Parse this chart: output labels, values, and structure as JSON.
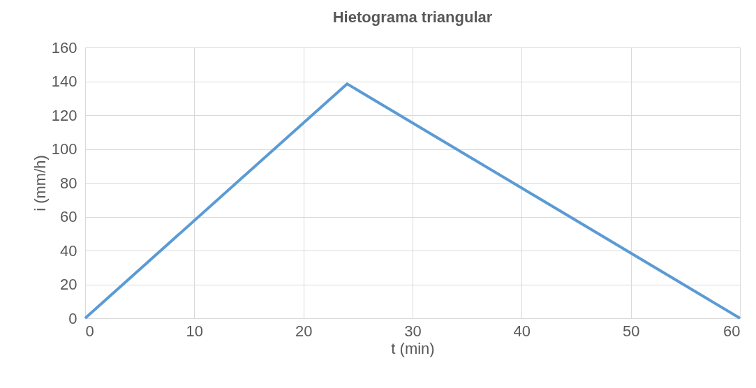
{
  "chart_data": {
    "type": "line",
    "title": "Hietograma triangular",
    "xlabel": "t (min)",
    "ylabel": "i (mm/h)",
    "x": [
      0,
      24,
      60
    ],
    "series": [
      {
        "color": "#5b9bd5",
        "values": [
          0,
          138.5,
          0
        ]
      }
    ],
    "xlim": [
      0,
      60
    ],
    "xticks": [
      0,
      10,
      20,
      30,
      40,
      50,
      60
    ],
    "ylim": [
      0,
      160
    ],
    "yticks": [
      0,
      20,
      40,
      60,
      80,
      100,
      120,
      140,
      160
    ],
    "grid": true,
    "marker": "none",
    "line_style": "solid"
  }
}
